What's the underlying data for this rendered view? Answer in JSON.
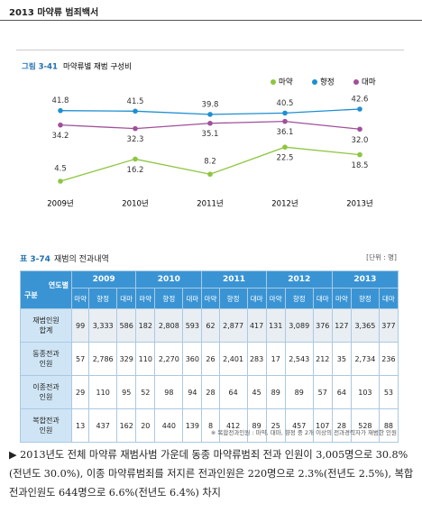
{
  "header": {
    "title": "2013 마약류 범죄백서"
  },
  "chart_data": {
    "type": "line",
    "figure_number": "그림 3-41",
    "title": "마약류별 재범 구성비",
    "categories": [
      "2009년",
      "2010년",
      "2011년",
      "2012년",
      "2013년"
    ],
    "series": [
      {
        "name": "마약",
        "color": "#8dc63f",
        "values": [
          4.5,
          16.2,
          8.2,
          22.5,
          18.5
        ]
      },
      {
        "name": "향정",
        "color": "#1f8fd0",
        "values": [
          41.8,
          41.5,
          39.8,
          40.5,
          42.6
        ]
      },
      {
        "name": "대마",
        "color": "#a0509b",
        "values": [
          34.2,
          32.3,
          35.1,
          36.1,
          32.0
        ],
        "value_labels": [
          "34.2",
          "32.3",
          "35.1",
          "36.1",
          "32.0"
        ]
      }
    ],
    "legend": "top-right"
  },
  "table": {
    "number": "표 3-74",
    "title": "재범의 전과내역",
    "unit": "[단위 : 명]",
    "corner": [
      "연도별",
      "구분"
    ],
    "years": [
      "2009",
      "2010",
      "2011",
      "2012",
      "2013"
    ],
    "subheaders": [
      "마약",
      "향정",
      "대마"
    ],
    "rows": [
      {
        "label": "재범인원\n합계",
        "cells": [
          "99",
          "3,333",
          "586",
          "182",
          "2,808",
          "593",
          "62",
          "2,877",
          "417",
          "131",
          "3,089",
          "376",
          "127",
          "3,365",
          "377"
        ]
      },
      {
        "label": "동종전과\n인원",
        "cells": [
          "57",
          "2,786",
          "329",
          "110",
          "2,270",
          "360",
          "26",
          "2,401",
          "283",
          "17",
          "2,543",
          "212",
          "35",
          "2,734",
          "236"
        ]
      },
      {
        "label": "이종전과\n인원",
        "cells": [
          "29",
          "110",
          "95",
          "52",
          "98",
          "94",
          "28",
          "64",
          "45",
          "89",
          "89",
          "57",
          "64",
          "103",
          "53"
        ]
      },
      {
        "label": "복합전과\n인원",
        "cells": [
          "13",
          "437",
          "162",
          "20",
          "440",
          "139",
          "8",
          "412",
          "89",
          "25",
          "457",
          "107",
          "28",
          "528",
          "88"
        ]
      }
    ]
  },
  "footnote": "※ 복합전과인원 : 마약, 대마, 향정 중 2개 이상의 전과경력자가 재범한 인원",
  "paragraph": "▶ 2013년도 전체 마약류 재범사범 가운데 동종 마약류범죄 전과 인원이 3,005명으로 30.8%(전년도 30.0%), 이종 마약류범죄를 저지른 전과인원은 220명으로 2.3%(전년도 2.5%), 복합전과인원도 644명으로 6.6%(전년도 6.4%) 차지"
}
